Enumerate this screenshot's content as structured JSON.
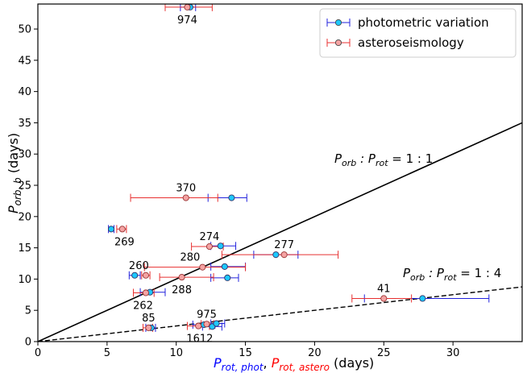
{
  "chart_data": {
    "type": "scatter",
    "xlim": [
      0,
      35
    ],
    "ylim": [
      0,
      54
    ],
    "x_ticks": [
      0,
      5,
      10,
      15,
      20,
      25,
      30
    ],
    "y_ticks": [
      0,
      5,
      10,
      15,
      20,
      25,
      30,
      35,
      40,
      45,
      50
    ],
    "xlabel": {
      "part1": "P",
      "part1_sub": "rot, phot",
      "sep": ", ",
      "part2": "P",
      "part2_sub": "rot, astero",
      "suffix": " (days)",
      "color1": "#0000ff",
      "color2": "#ff0000"
    },
    "ylabel": {
      "base": "P",
      "sub": "orb, b",
      "suffix": " (days)"
    },
    "legend": [
      {
        "name": "photometric variation",
        "marker_color": "#1ec8ff",
        "error_color": "#2222dd"
      },
      {
        "name": "asteroseismology",
        "marker_color": "#f4a3a3",
        "error_color": "#e83030"
      }
    ],
    "lines": [
      {
        "name": "1:1",
        "label_base": "P",
        "label_sub1": "orb",
        "label_mid": " : P",
        "label_sub2": "rot",
        "label_ratio": " = 1 : 1",
        "slope": 1.0,
        "style": "solid"
      },
      {
        "name": "1:4",
        "label_base": "P",
        "label_sub1": "orb",
        "label_mid": " : P",
        "label_sub2": "rot",
        "label_ratio": " = 1 : 4",
        "slope": 0.25,
        "style": "dashed"
      }
    ],
    "series": [
      {
        "name": "photometric variation",
        "points": [
          {
            "x": 11.0,
            "xerr": [
              0.7,
              0.4
            ],
            "y": 53.5
          },
          {
            "x": 14.0,
            "xerr": [
              1.7,
              1.1
            ],
            "y": 23.0
          },
          {
            "x": 5.3,
            "xerr": [
              0.2,
              0.2
            ],
            "y": 18.0
          },
          {
            "x": 13.2,
            "xerr": [
              0.7,
              1.1
            ],
            "y": 15.3
          },
          {
            "x": 17.2,
            "xerr": [
              1.6,
              1.6
            ],
            "y": 13.9
          },
          {
            "x": 13.5,
            "xerr": [
              1.0,
              1.5
            ],
            "y": 12.0
          },
          {
            "x": 13.7,
            "xerr": [
              1.2,
              0.8
            ],
            "y": 10.2
          },
          {
            "x": 7.0,
            "xerr": [
              0.4,
              0.4
            ],
            "y": 10.6
          },
          {
            "x": 8.1,
            "xerr": [
              0.7,
              1.1
            ],
            "y": 7.9
          },
          {
            "x": 27.8,
            "xerr": [
              4.2,
              4.8
            ],
            "y": 6.9
          },
          {
            "x": 8.2,
            "xerr": [
              0.4,
              0.3
            ],
            "y": 2.2
          },
          {
            "x": 12.0,
            "xerr": [
              0.8,
              0.8
            ],
            "y": 2.7
          },
          {
            "x": 12.6,
            "xerr": [
              0.7,
              0.7
            ],
            "y": 2.4
          },
          {
            "x": 12.9,
            "xerr": [
              0.4,
              0.6
            ],
            "y": 2.9
          }
        ]
      },
      {
        "name": "asteroseismology",
        "points": [
          {
            "x": 10.8,
            "xerr": [
              1.6,
              1.8
            ],
            "y": 53.5
          },
          {
            "x": 10.7,
            "xerr": [
              4.0,
              2.3
            ],
            "y": 23.0
          },
          {
            "x": 6.1,
            "xerr": [
              0.4,
              0.3
            ],
            "y": 18.0
          },
          {
            "x": 12.4,
            "xerr": [
              1.3,
              1.0
            ],
            "y": 15.2
          },
          {
            "x": 17.8,
            "xerr": [
              4.5,
              3.9
            ],
            "y": 13.9
          },
          {
            "x": 11.9,
            "xerr": [
              4.2,
              3.1
            ],
            "y": 11.9
          },
          {
            "x": 10.4,
            "xerr": [
              1.6,
              2.3
            ],
            "y": 10.3
          },
          {
            "x": 7.8,
            "xerr": [
              0.3,
              0.3
            ],
            "y": 10.6
          },
          {
            "x": 7.8,
            "xerr": [
              0.9,
              0.6
            ],
            "y": 7.8
          },
          {
            "x": 25.0,
            "xerr": [
              2.3,
              2.0
            ],
            "y": 6.9
          },
          {
            "x": 8.0,
            "xerr": [
              0.4,
              0.3
            ],
            "y": 2.2
          },
          {
            "x": 11.6,
            "xerr": [
              0.8,
              0.8
            ],
            "y": 2.5
          },
          {
            "x": 12.2,
            "xerr": [
              0.4,
              0.5
            ],
            "y": 2.8
          }
        ]
      }
    ],
    "annotations": [
      {
        "text": "974",
        "x": 10.8,
        "y": 53.5,
        "pos": "below"
      },
      {
        "text": "370",
        "x": 10.7,
        "y": 23.0,
        "pos": "above"
      },
      {
        "text": "269",
        "x": 5.3,
        "y": 18.0,
        "pos": "below-right"
      },
      {
        "text": "274",
        "x": 12.4,
        "y": 15.2,
        "pos": "above"
      },
      {
        "text": "277",
        "x": 17.8,
        "y": 13.9,
        "pos": "above"
      },
      {
        "text": "280",
        "x": 11.0,
        "y": 11.9,
        "pos": "above-left"
      },
      {
        "text": "260",
        "x": 7.3,
        "y": 10.6,
        "pos": "above"
      },
      {
        "text": "288",
        "x": 10.4,
        "y": 10.3,
        "pos": "below"
      },
      {
        "text": "262",
        "x": 7.6,
        "y": 7.8,
        "pos": "below"
      },
      {
        "text": "41",
        "x": 25.0,
        "y": 6.9,
        "pos": "above"
      },
      {
        "text": "85",
        "x": 8.0,
        "y": 2.2,
        "pos": "above"
      },
      {
        "text": "975",
        "x": 12.2,
        "y": 2.8,
        "pos": "above"
      },
      {
        "text": "1612",
        "x": 11.7,
        "y": 2.5,
        "pos": "below"
      }
    ]
  }
}
